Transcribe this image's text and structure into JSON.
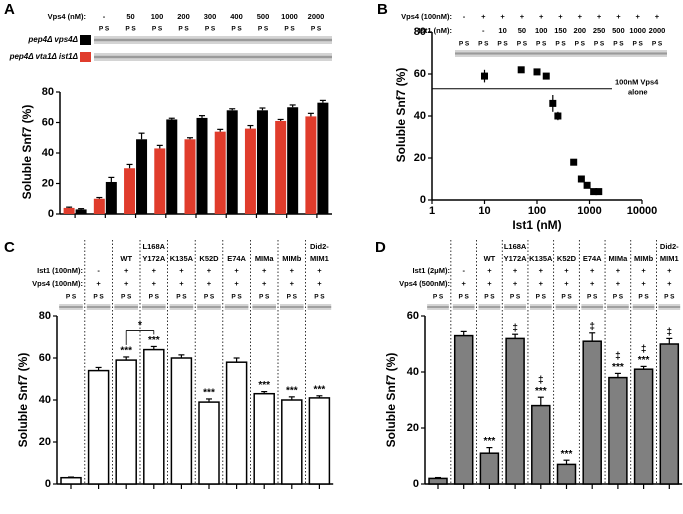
{
  "chart_data": [
    {
      "type": "grouped_bar",
      "panel_label": "A",
      "category_label": "Vps4 (nM):",
      "categories": [
        "-",
        "50",
        "100",
        "200",
        "300",
        "400",
        "500",
        "1000",
        "2000"
      ],
      "lane_label": "P S",
      "series": [
        {
          "name": "pep4Δ vps4Δ",
          "color": "#000000",
          "values": [
            3,
            21,
            49,
            62,
            63,
            68,
            68,
            70,
            73
          ],
          "errors": [
            0.5,
            3,
            4,
            0.8,
            1.5,
            1,
            1.5,
            1.5,
            1.5
          ]
        },
        {
          "name": "pep4Δ vta1Δ ist1Δ",
          "color": "#e03c2c",
          "values": [
            4,
            10,
            30,
            43,
            49,
            54,
            56,
            61,
            64
          ],
          "errors": [
            0.5,
            0.8,
            2.5,
            2,
            1,
            1.5,
            2,
            1,
            2
          ]
        }
      ],
      "y_label": "Soluble Snf7 (%)",
      "ylim": [
        0,
        80
      ],
      "yticks": [
        0,
        20,
        40,
        60,
        80
      ]
    },
    {
      "type": "scatter",
      "panel_label": "B",
      "header_rows": [
        {
          "label": "Vps4 (100nM):",
          "values": [
            "-",
            "+",
            "+",
            "+",
            "+",
            "+",
            "+",
            "+",
            "+",
            "+",
            "+"
          ]
        },
        {
          "label": "Ist1 (nM):",
          "values": [
            null,
            "-",
            "10",
            "50",
            "100",
            "150",
            "200",
            "250",
            "500",
            "1000",
            "2000"
          ]
        }
      ],
      "lane_label": "P S",
      "x": [
        10,
        50,
        100,
        150,
        200,
        250,
        500,
        700,
        900,
        1200,
        1500
      ],
      "values": [
        59,
        62,
        61,
        59,
        46,
        40,
        18,
        10,
        7,
        4,
        4
      ],
      "errors": [
        3,
        1,
        1,
        1,
        4,
        2,
        1,
        1,
        1,
        1,
        1
      ],
      "color": "#000000",
      "reference_line": {
        "value": 53,
        "label": [
          "100nM Vps4",
          "alone"
        ]
      },
      "x_label": "Ist1 (nM)",
      "y_label": "Soluble Snf7 (%)",
      "x_scale": "log",
      "xlim": [
        1,
        10000
      ],
      "xticks": [
        1,
        10,
        100,
        1000,
        10000
      ],
      "ylim": [
        0,
        80
      ],
      "yticks": [
        0,
        20,
        40,
        60,
        80
      ]
    },
    {
      "type": "bar",
      "panel_label": "C",
      "categories": [
        null,
        null,
        "WT",
        [
          "L168A",
          "Y172A"
        ],
        "K135A",
        "K52D",
        "E74A",
        "MIMa",
        "MIMb",
        [
          "Did2-",
          "MIM1"
        ]
      ],
      "header_rows": [
        {
          "label": "Ist1 (100nM):",
          "values": [
            null,
            "-",
            "+",
            "+",
            "+",
            "+",
            "+",
            "+",
            "+",
            "+"
          ]
        },
        {
          "label": "Vps4 (100nM):",
          "values": [
            null,
            "+",
            "+",
            "+",
            "+",
            "+",
            "+",
            "+",
            "+",
            "+"
          ]
        }
      ],
      "lane_label": "P S",
      "values": [
        3,
        54,
        59,
        64,
        60,
        39,
        58,
        43,
        40,
        41
      ],
      "errors": [
        0.3,
        1.5,
        1.5,
        1.5,
        1.5,
        1.5,
        2,
        1,
        1.5,
        1
      ],
      "annotations": [
        null,
        null,
        [
          "***"
        ],
        [
          "***"
        ],
        null,
        [
          "***"
        ],
        null,
        [
          "***"
        ],
        [
          "***"
        ],
        [
          "***"
        ]
      ],
      "bracket_label": "*",
      "color": "#ffffff",
      "y_label": "Soluble Snf7 (%)",
      "ylim": [
        0,
        80
      ],
      "yticks": [
        0,
        20,
        40,
        60,
        80
      ]
    },
    {
      "type": "bar",
      "panel_label": "D",
      "categories": [
        null,
        null,
        "WT",
        [
          "L168A",
          "Y172A"
        ],
        "K135A",
        "K52D",
        "E74A",
        "MIMa",
        "MIMb",
        [
          "Did2-",
          "MIM1"
        ]
      ],
      "header_rows": [
        {
          "label": "Ist1 (2μM):",
          "values": [
            null,
            "-",
            "+",
            "+",
            "+",
            "+",
            "+",
            "+",
            "+",
            "+"
          ]
        },
        {
          "label": "Vps4 (500nM):",
          "values": [
            null,
            "+",
            "+",
            "+",
            "+",
            "+",
            "+",
            "+",
            "+",
            "+"
          ]
        }
      ],
      "lane_label": "P S",
      "values": [
        2,
        53,
        11,
        52,
        28,
        7,
        51,
        38,
        41,
        50
      ],
      "errors": [
        0.3,
        1.5,
        2,
        1.5,
        3,
        1.5,
        3,
        1.5,
        1,
        2
      ],
      "annotations": [
        null,
        null,
        [
          "***"
        ],
        [
          "‡"
        ],
        [
          "‡",
          "***"
        ],
        [
          "***"
        ],
        [
          "‡"
        ],
        [
          "‡",
          "***"
        ],
        [
          "‡",
          "***"
        ],
        [
          "‡"
        ]
      ],
      "color": "#808080",
      "y_label": "Soluble Snf7 (%)",
      "ylim": [
        0,
        60
      ],
      "yticks": [
        0,
        20,
        40,
        60
      ]
    }
  ]
}
